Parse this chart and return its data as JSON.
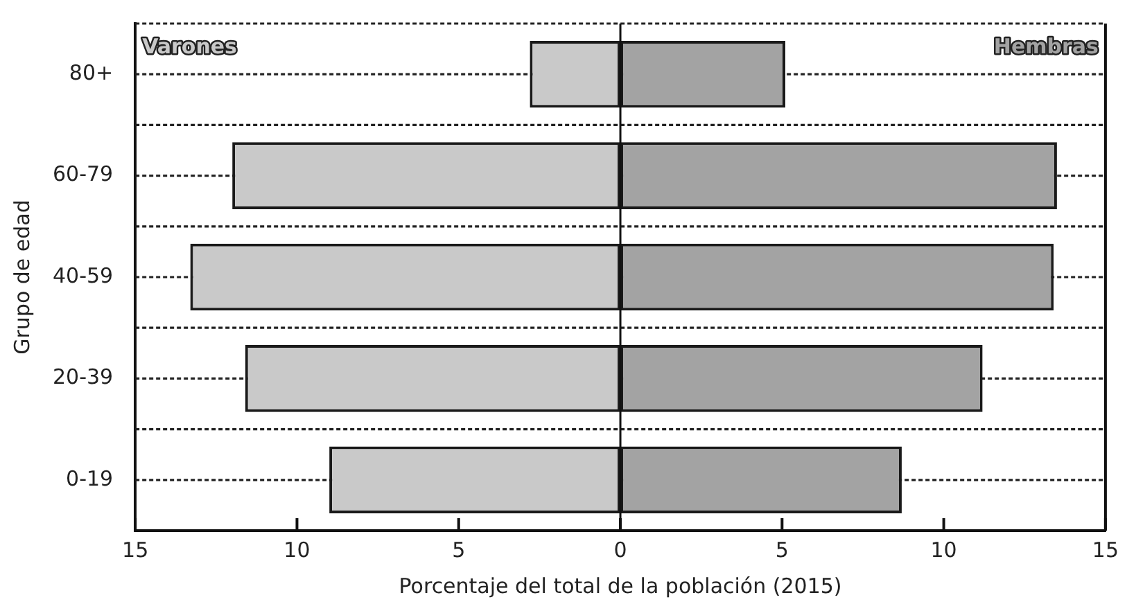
{
  "chart_data": {
    "type": "bar",
    "orientation": "horizontal",
    "xlabel": "Porcentaje del total de la población (2015)",
    "ylabel": "Grupo de edad",
    "categories": [
      "80+",
      "60-79",
      "40-59",
      "20-39",
      "0-19"
    ],
    "series": [
      {
        "name": "Varones",
        "color": "#c9c9c9",
        "values": [
          -2.8,
          -12.0,
          -13.3,
          -11.6,
          -9.0
        ]
      },
      {
        "name": "Hembras",
        "color": "#a3a3a3",
        "values": [
          5.1,
          13.5,
          13.4,
          11.2,
          8.7
        ]
      }
    ],
    "xlim": [
      -15,
      15
    ],
    "xticks": [
      {
        "value": -15,
        "label": "15"
      },
      {
        "value": -10,
        "label": "10"
      },
      {
        "value": -5,
        "label": "5"
      },
      0,
      5,
      10,
      15
    ],
    "ref_lines": [
      {
        "axis": "x",
        "value": 0,
        "color": "#111111"
      }
    ],
    "grid": "y",
    "legend": false,
    "stacked": true
  }
}
